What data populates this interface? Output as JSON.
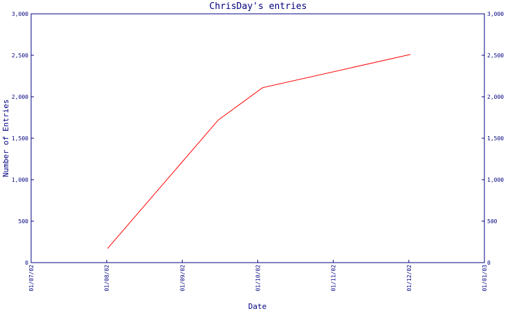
{
  "chart_data": {
    "type": "line",
    "title": "ChrisDay's entries",
    "xlabel": "Date",
    "ylabel": "Number of Entries",
    "x_ticks": [
      "01/07/02",
      "01/08/02",
      "01/09/02",
      "01/10/02",
      "01/11/02",
      "01/12/02",
      "01/01/03"
    ],
    "y_ticks": [
      "0",
      "500",
      "1,000",
      "1,500",
      "2,000",
      "2,500",
      "3,000"
    ],
    "y_tick_values": [
      0,
      500,
      1000,
      1500,
      2000,
      2500,
      3000
    ],
    "xlim": [
      "2002-07-01",
      "2003-01-01"
    ],
    "ylim": [
      0,
      3000
    ],
    "grid": false,
    "series": [
      {
        "color": "#ff0000",
        "points": [
          {
            "x": "2002-08-01",
            "y": 170
          },
          {
            "x": "2002-09-15",
            "y": 1720
          },
          {
            "x": "2002-10-03",
            "y": 2110
          },
          {
            "x": "2002-12-02",
            "y": 2510
          }
        ]
      }
    ],
    "axis_color": "#000080"
  }
}
